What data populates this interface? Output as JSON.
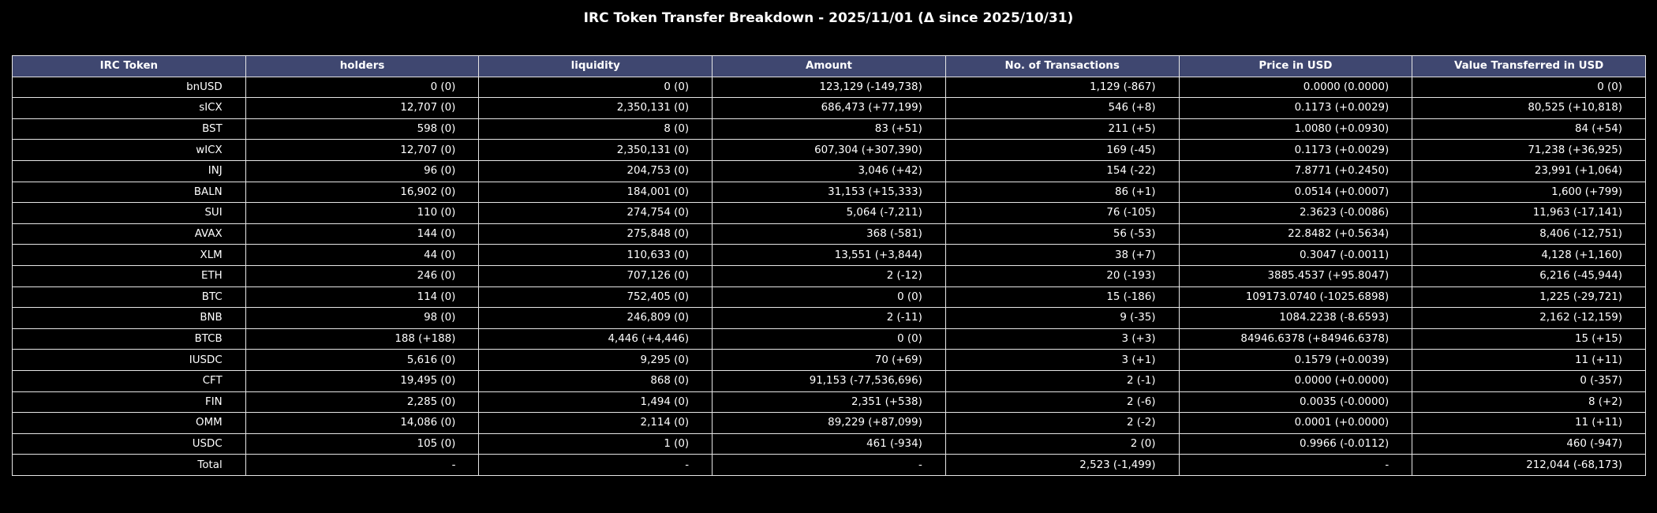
{
  "chart_data": {
    "type": "table",
    "title": "IRC Token Transfer Breakdown - 2025/11/01 (Δ since 2025/10/31)",
    "columns": [
      "IRC Token",
      "holders",
      "liquidity",
      "Amount",
      "No. of Transactions",
      "Price in USD",
      "Value Transferred in USD"
    ],
    "rows": [
      [
        "bnUSD",
        "0 (0)",
        "0 (0)",
        "123,129 (-149,738)",
        "1,129 (-867)",
        "0.0000 (0.0000)",
        "0 (0)"
      ],
      [
        "sICX",
        "12,707 (0)",
        "2,350,131 (0)",
        "686,473 (+77,199)",
        "546 (+8)",
        "0.1173 (+0.0029)",
        "80,525 (+10,818)"
      ],
      [
        "BST",
        "598 (0)",
        "8 (0)",
        "83 (+51)",
        "211 (+5)",
        "1.0080 (+0.0930)",
        "84 (+54)"
      ],
      [
        "wICX",
        "12,707 (0)",
        "2,350,131 (0)",
        "607,304 (+307,390)",
        "169 (-45)",
        "0.1173 (+0.0029)",
        "71,238 (+36,925)"
      ],
      [
        "INJ",
        "96 (0)",
        "204,753 (0)",
        "3,046 (+42)",
        "154 (-22)",
        "7.8771 (+0.2450)",
        "23,991 (+1,064)"
      ],
      [
        "BALN",
        "16,902 (0)",
        "184,001 (0)",
        "31,153 (+15,333)",
        "86 (+1)",
        "0.0514 (+0.0007)",
        "1,600 (+799)"
      ],
      [
        "SUI",
        "110 (0)",
        "274,754 (0)",
        "5,064 (-7,211)",
        "76 (-105)",
        "2.3623 (-0.0086)",
        "11,963 (-17,141)"
      ],
      [
        "AVAX",
        "144 (0)",
        "275,848 (0)",
        "368 (-581)",
        "56 (-53)",
        "22.8482 (+0.5634)",
        "8,406 (-12,751)"
      ],
      [
        "XLM",
        "44 (0)",
        "110,633 (0)",
        "13,551 (+3,844)",
        "38 (+7)",
        "0.3047 (-0.0011)",
        "4,128 (+1,160)"
      ],
      [
        "ETH",
        "246 (0)",
        "707,126 (0)",
        "2 (-12)",
        "20 (-193)",
        "3885.4537 (+95.8047)",
        "6,216 (-45,944)"
      ],
      [
        "BTC",
        "114 (0)",
        "752,405 (0)",
        "0 (0)",
        "15 (-186)",
        "109173.0740 (-1025.6898)",
        "1,225 (-29,721)"
      ],
      [
        "BNB",
        "98 (0)",
        "246,809 (0)",
        "2 (-11)",
        "9 (-35)",
        "1084.2238 (-8.6593)",
        "2,162 (-12,159)"
      ],
      [
        "BTCB",
        "188 (+188)",
        "4,446 (+4,446)",
        "0 (0)",
        "3 (+3)",
        "84946.6378 (+84946.6378)",
        "15 (+15)"
      ],
      [
        "IUSDC",
        "5,616 (0)",
        "9,295 (0)",
        "70 (+69)",
        "3 (+1)",
        "0.1579 (+0.0039)",
        "11 (+11)"
      ],
      [
        "CFT",
        "19,495 (0)",
        "868 (0)",
        "91,153 (-77,536,696)",
        "2 (-1)",
        "0.0000 (+0.0000)",
        "0 (-357)"
      ],
      [
        "FIN",
        "2,285 (0)",
        "1,494 (0)",
        "2,351 (+538)",
        "2 (-6)",
        "0.0035 (-0.0000)",
        "8 (+2)"
      ],
      [
        "OMM",
        "14,086 (0)",
        "2,114 (0)",
        "89,229 (+87,099)",
        "2 (-2)",
        "0.0001 (+0.0000)",
        "11 (+11)"
      ],
      [
        "USDC",
        "105 (0)",
        "1 (0)",
        "461 (-934)",
        "2 (0)",
        "0.9966 (-0.0112)",
        "460 (-947)"
      ],
      [
        "Total",
        "-",
        "-",
        "-",
        "2,523 (-1,499)",
        "-",
        "212,044 (-68,173)"
      ]
    ],
    "header_color": "#3f4770",
    "background_color": "#000000",
    "grid_color": "#e6e6e6",
    "text_color": "#ffffff"
  }
}
